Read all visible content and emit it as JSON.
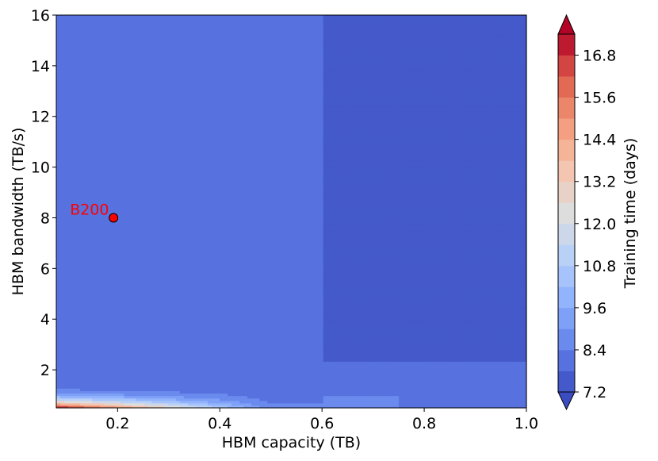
{
  "chart_data": {
    "type": "contourf",
    "xlabel": "HBM capacity (TB)",
    "ylabel": "HBM bandwidth (TB/s)",
    "xlim": [
      0.08,
      1.0
    ],
    "ylim": [
      0.5,
      16
    ],
    "x_ticks": [
      0.2,
      0.4,
      0.6,
      0.8,
      1.0
    ],
    "x_tick_labels": [
      "0.2",
      "0.4",
      "0.6",
      "0.8",
      "1.0"
    ],
    "y_ticks": [
      2,
      4,
      6,
      8,
      10,
      12,
      14,
      16
    ],
    "y_tick_labels": [
      "2",
      "4",
      "6",
      "8",
      "10",
      "12",
      "14",
      "16"
    ],
    "grid": false,
    "colormap": "coolwarm",
    "colorbar": {
      "label": "Training time (days)",
      "min": 7.2,
      "max": 17.4,
      "level_step": 0.6,
      "extend": "both",
      "ticks": [
        7.2,
        8.4,
        9.6,
        10.8,
        12.0,
        13.2,
        14.4,
        15.6,
        16.8
      ],
      "tick_labels": [
        "7.2",
        "8.4",
        "9.6",
        "10.8",
        "12.0",
        "13.2",
        "14.4",
        "15.6",
        "16.8"
      ]
    },
    "regions": [
      {
        "description": "capacity >= 0.6 TB and bandwidth >= 2.3 TB/s",
        "value": 7.4
      },
      {
        "description": "capacity < 0.6 TB, bandwidth >= 1.6 TB/s",
        "value": 8.0
      },
      {
        "description": "low bandwidth band, capacity < 0.4 TB",
        "value_range": [
          8.0,
          17.4
        ]
      }
    ],
    "annotations": [
      {
        "label": "B200",
        "x": 0.192,
        "y": 8.0,
        "marker_color": "#ff0000",
        "text_color": "#ff0000"
      }
    ]
  }
}
